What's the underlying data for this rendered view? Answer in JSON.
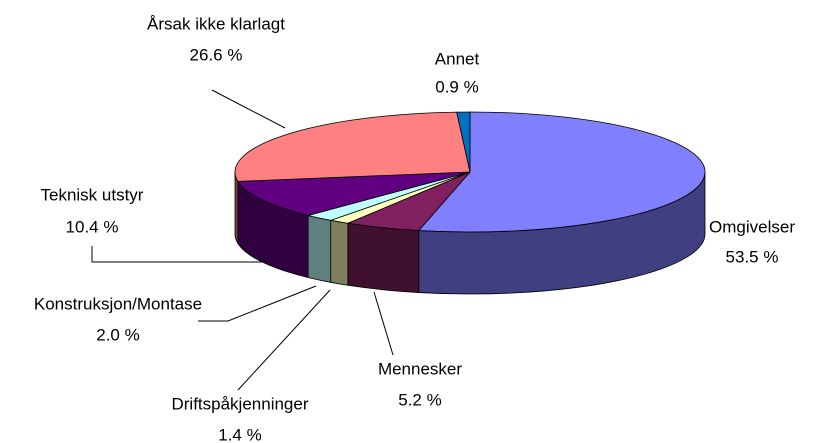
{
  "chart_data": {
    "type": "pie",
    "categories": [
      "Omgivelser",
      "Mennesker",
      "Driftspåkjenninger",
      "Konstruksjon/Montase",
      "Teknisk utstyr",
      "Årsak ikke klarlagt",
      "Annet"
    ],
    "values": [
      53.5,
      5.2,
      1.4,
      2.0,
      10.4,
      26.6,
      0.9
    ],
    "value_labels": [
      "53.5 %",
      "5.2 %",
      "1.4 %",
      "2.0 %",
      "10.4 %",
      "26.6 %",
      "0.9 %"
    ],
    "colors": [
      "#8080ff",
      "#802060",
      "#ffffc0",
      "#c0ffff",
      "#600080",
      "#ff8080",
      "#0070c0"
    ],
    "three_d": true
  }
}
